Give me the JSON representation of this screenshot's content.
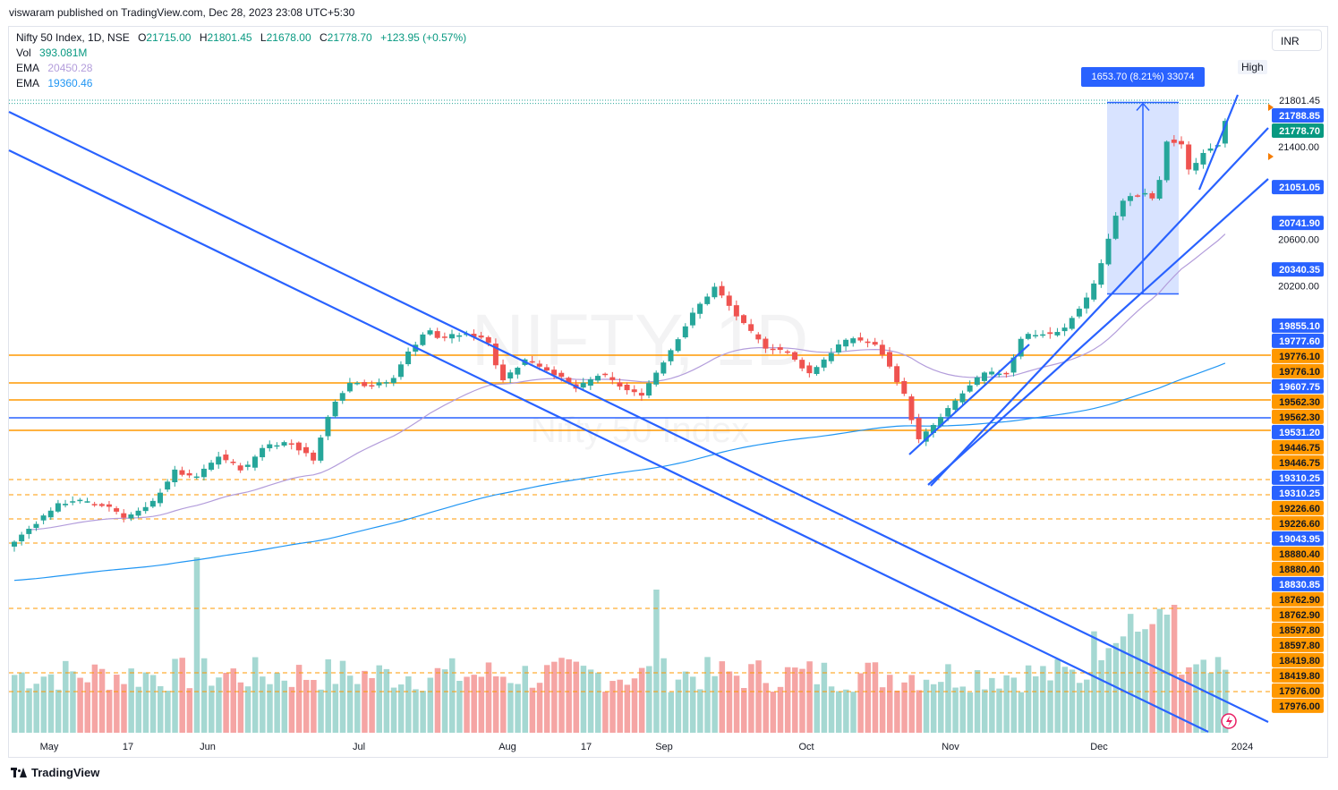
{
  "published_text": "viswaram published on TradingView.com, Dec 28, 2023 23:08 UTC+5:30",
  "watermark": {
    "symbol": "NIFTY, 1D",
    "name": "Nifty 50 Index"
  },
  "legend": {
    "title": "Nifty 50 Index, 1D, NSE",
    "open_label": "O",
    "open": "21715.00",
    "high_label": "H",
    "high": "21801.45",
    "low_label": "L",
    "low": "21678.00",
    "close_label": "C",
    "close": "21778.70",
    "change": "+123.95 (+0.57%)",
    "vol_label": "Vol",
    "vol": "393.081M",
    "ema1_label": "EMA",
    "ema1": "20450.28",
    "ema2_label": "EMA",
    "ema2": "19360.46"
  },
  "currency": "INR",
  "high_tag": "High",
  "measure": {
    "label": "1653.70 (8.21%) 33074"
  },
  "footer": {
    "brand": "TradingView"
  },
  "colors": {
    "up": "#26a69a",
    "down": "#ef5350",
    "vol_up": "#a5d8d2",
    "vol_down": "#f5a5a4",
    "trend": "#2962ff",
    "level": "#ff9800",
    "ema50": "#b39ddb",
    "ema200": "#2196f3"
  },
  "chart_data": {
    "type": "candlestick",
    "ylim": [
      17976,
      21950
    ],
    "x_ticks": [
      "May",
      "17",
      "Jun",
      "Jul",
      "Aug",
      "17",
      "Sep",
      "Oct",
      "Nov",
      "Dec",
      "2024"
    ],
    "y_ticks": [
      "21400.00",
      "20600.00",
      "20200.00"
    ],
    "price_tags": [
      {
        "text": "21801.45",
        "value": 21801.45,
        "style": "plain"
      },
      {
        "text": "21788.85",
        "value": 21788.85,
        "style": "blue"
      },
      {
        "text": "21778.70",
        "value": 21778.7,
        "style": "green"
      },
      {
        "text": "21051.05",
        "value": 21051.05,
        "style": "blue"
      },
      {
        "text": "20741.90",
        "value": 20741.9,
        "style": "blue"
      },
      {
        "text": "20340.35",
        "value": 20340.35,
        "style": "blue"
      },
      {
        "text": "19855.10",
        "value": 19855.1,
        "style": "blue"
      },
      {
        "text": "19777.60",
        "value": 19777.6,
        "style": "blue"
      },
      {
        "text": "19776.10",
        "value": 19776.1,
        "style": "orange"
      },
      {
        "text": "19776.10",
        "value": 19776.1,
        "style": "orange"
      },
      {
        "text": "19607.75",
        "value": 19607.75,
        "style": "blue"
      },
      {
        "text": "19562.30",
        "value": 19562.3,
        "style": "orange"
      },
      {
        "text": "19562.30",
        "value": 19562.3,
        "style": "orange"
      },
      {
        "text": "19531.20",
        "value": 19531.2,
        "style": "blue"
      },
      {
        "text": "19446.75",
        "value": 19446.75,
        "style": "orange"
      },
      {
        "text": "19446.75",
        "value": 19446.75,
        "style": "orange"
      },
      {
        "text": "19310.25",
        "value": 19310.25,
        "style": "blue"
      },
      {
        "text": "19310.25",
        "value": 19310.25,
        "style": "blue"
      },
      {
        "text": "19226.60",
        "value": 19226.6,
        "style": "orange"
      },
      {
        "text": "19226.60",
        "value": 19226.6,
        "style": "orange"
      },
      {
        "text": "19043.95",
        "value": 19043.95,
        "style": "blue"
      },
      {
        "text": "18880.40",
        "value": 18880.4,
        "style": "orange"
      },
      {
        "text": "18880.40",
        "value": 18880.4,
        "style": "orange"
      },
      {
        "text": "18830.85",
        "value": 18830.85,
        "style": "blue"
      },
      {
        "text": "18762.90",
        "value": 18762.9,
        "style": "orange"
      },
      {
        "text": "18762.90",
        "value": 18762.9,
        "style": "orange"
      },
      {
        "text": "18597.80",
        "value": 18597.8,
        "style": "orange"
      },
      {
        "text": "18597.80",
        "value": 18597.8,
        "style": "orange"
      },
      {
        "text": "18419.80",
        "value": 18419.8,
        "style": "orange"
      },
      {
        "text": "18419.80",
        "value": 18419.8,
        "style": "orange"
      },
      {
        "text": "17976.00",
        "value": 17976.0,
        "style": "orange"
      },
      {
        "text": "17976.00",
        "value": 17976.0,
        "style": "orange"
      }
    ],
    "horizontal_levels": [
      19855.1,
      19776.1,
      19607.75,
      19531.2
    ],
    "measure_range": {
      "from": 20128.75,
      "to": 21782.45,
      "change": 1653.7,
      "percent": 8.21,
      "volume": 33074
    },
    "close_path": [
      {
        "d": "2023-05-01",
        "c": 18150
      },
      {
        "d": "2023-05-05",
        "c": 18300
      },
      {
        "d": "2023-05-09",
        "c": 18350
      },
      {
        "d": "2023-05-12",
        "c": 18320
      },
      {
        "d": "2023-05-16",
        "c": 18290
      },
      {
        "d": "2023-05-19",
        "c": 18200
      },
      {
        "d": "2023-05-24",
        "c": 18290
      },
      {
        "d": "2023-05-29",
        "c": 18600
      },
      {
        "d": "2023-06-02",
        "c": 18530
      },
      {
        "d": "2023-06-07",
        "c": 18730
      },
      {
        "d": "2023-06-12",
        "c": 18600
      },
      {
        "d": "2023-06-16",
        "c": 18820
      },
      {
        "d": "2023-06-21",
        "c": 18850
      },
      {
        "d": "2023-06-26",
        "c": 18700
      },
      {
        "d": "2023-06-30",
        "c": 19190
      },
      {
        "d": "2023-07-04",
        "c": 19390
      },
      {
        "d": "2023-07-07",
        "c": 19330
      },
      {
        "d": "2023-07-12",
        "c": 19380
      },
      {
        "d": "2023-07-14",
        "c": 19560
      },
      {
        "d": "2023-07-19",
        "c": 19830
      },
      {
        "d": "2023-07-21",
        "c": 19750
      },
      {
        "d": "2023-07-26",
        "c": 19780
      },
      {
        "d": "2023-07-31",
        "c": 19750
      },
      {
        "d": "2023-08-03",
        "c": 19380
      },
      {
        "d": "2023-08-08",
        "c": 19570
      },
      {
        "d": "2023-08-14",
        "c": 19430
      },
      {
        "d": "2023-08-18",
        "c": 19310
      },
      {
        "d": "2023-08-23",
        "c": 19440
      },
      {
        "d": "2023-08-28",
        "c": 19300
      },
      {
        "d": "2023-08-31",
        "c": 19250
      },
      {
        "d": "2023-09-05",
        "c": 19570
      },
      {
        "d": "2023-09-11",
        "c": 19990
      },
      {
        "d": "2023-09-15",
        "c": 20190
      },
      {
        "d": "2023-09-20",
        "c": 19900
      },
      {
        "d": "2023-09-25",
        "c": 19670
      },
      {
        "d": "2023-09-29",
        "c": 19640
      },
      {
        "d": "2023-10-04",
        "c": 19440
      },
      {
        "d": "2023-10-10",
        "c": 19690
      },
      {
        "d": "2023-10-13",
        "c": 19750
      },
      {
        "d": "2023-10-18",
        "c": 19670
      },
      {
        "d": "2023-10-23",
        "c": 19280
      },
      {
        "d": "2023-10-26",
        "c": 18860
      },
      {
        "d": "2023-10-31",
        "c": 19080
      },
      {
        "d": "2023-11-03",
        "c": 19230
      },
      {
        "d": "2023-11-08",
        "c": 19440
      },
      {
        "d": "2023-11-13",
        "c": 19450
      },
      {
        "d": "2023-11-16",
        "c": 19780
      },
      {
        "d": "2023-11-21",
        "c": 19780
      },
      {
        "d": "2023-11-24",
        "c": 19800
      },
      {
        "d": "2023-11-29",
        "c": 20100
      },
      {
        "d": "2023-12-01",
        "c": 20270
      },
      {
        "d": "2023-12-04",
        "c": 20690
      },
      {
        "d": "2023-12-06",
        "c": 20940
      },
      {
        "d": "2023-12-08",
        "c": 20970
      },
      {
        "d": "2023-12-11",
        "c": 20990
      },
      {
        "d": "2023-12-13",
        "c": 20930
      },
      {
        "d": "2023-12-15",
        "c": 21450
      },
      {
        "d": "2023-12-18",
        "c": 21420
      },
      {
        "d": "2023-12-20",
        "c": 21150
      },
      {
        "d": "2023-12-21",
        "c": 21260
      },
      {
        "d": "2023-12-22",
        "c": 21350
      },
      {
        "d": "2023-12-26",
        "c": 21440
      },
      {
        "d": "2023-12-27",
        "c": 21660
      },
      {
        "d": "2023-12-28",
        "c": 21778.7
      }
    ]
  }
}
